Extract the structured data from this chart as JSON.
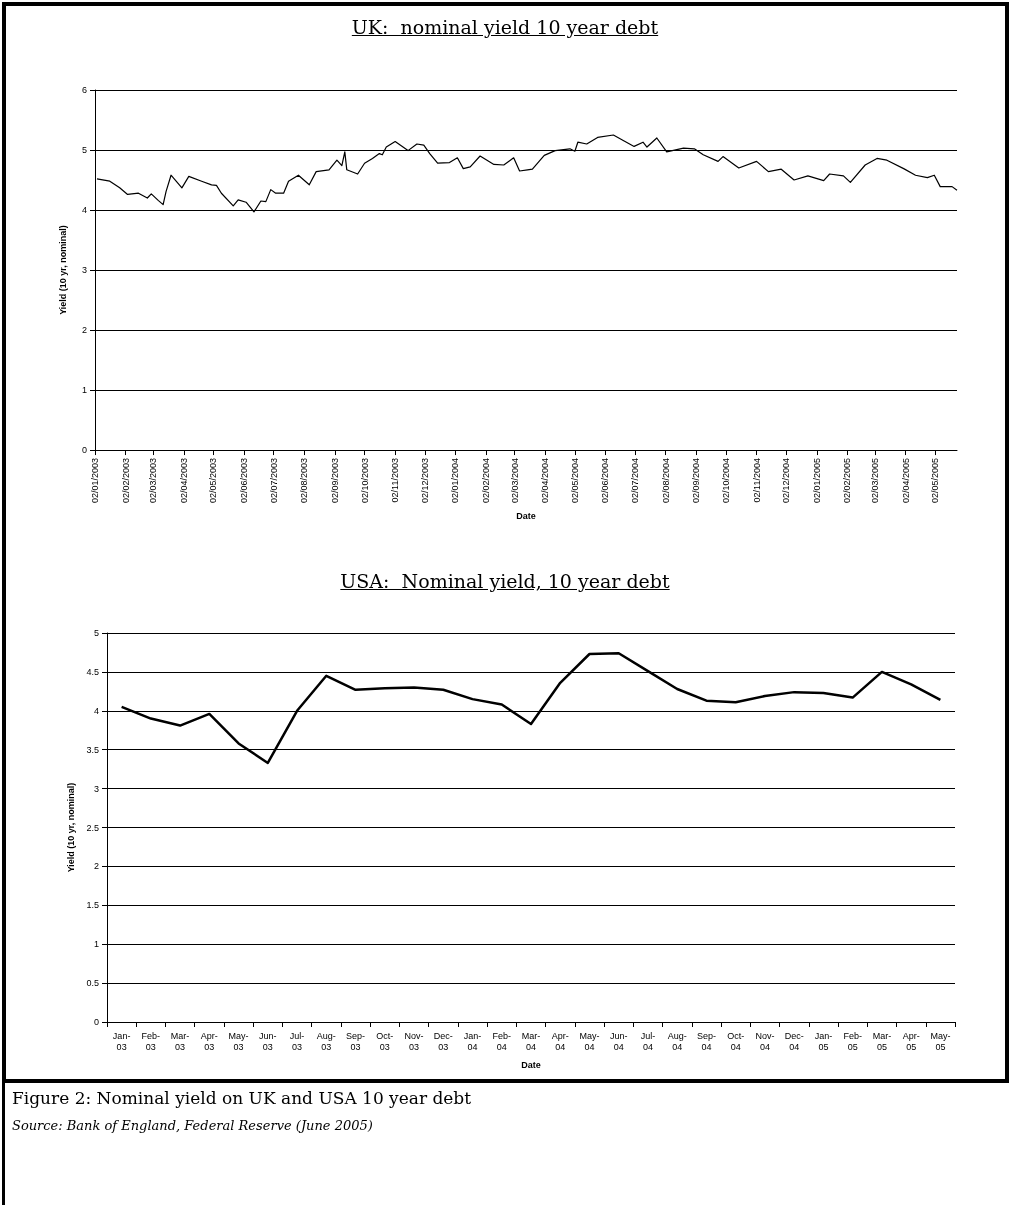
{
  "chart_data": [
    {
      "type": "line",
      "title": "UK:  nominal yield 10 year debt",
      "xlabel": "Date",
      "ylabel": "Yield (10 yr, nominal)",
      "marker": "none",
      "grid": "y",
      "color": "#000000",
      "x": [
        "2003-01-04",
        "2003-01-17",
        "2003-01-27",
        "2003-02-04",
        "2003-02-15",
        "2003-02-24",
        "2003-02-28",
        "2003-03-07",
        "2003-03-12",
        "2003-03-15",
        "2003-03-20",
        "2003-03-31",
        "2003-04-07",
        "2003-04-20",
        "2003-04-30",
        "2003-05-05",
        "2003-05-10",
        "2003-05-22",
        "2003-05-27",
        "2003-06-04",
        "2003-06-12",
        "2003-06-19",
        "2003-06-24",
        "2003-06-29",
        "2003-07-04",
        "2003-07-12",
        "2003-07-17",
        "2003-07-27",
        "2003-08-07",
        "2003-08-14",
        "2003-08-27",
        "2003-09-04",
        "2003-09-09",
        "2003-09-12",
        "2003-09-14",
        "2003-09-25",
        "2003-10-02",
        "2003-10-10",
        "2003-10-17",
        "2003-10-20",
        "2003-10-24",
        "2003-11-02",
        "2003-11-15",
        "2003-11-24",
        "2003-12-01",
        "2003-12-07",
        "2003-12-15",
        "2003-12-27",
        "2004-01-04",
        "2004-01-10",
        "2004-01-17",
        "2004-01-27",
        "2004-02-10",
        "2004-02-20",
        "2004-03-01",
        "2004-03-07",
        "2004-03-15",
        "2004-03-20",
        "2004-04-01",
        "2004-04-12",
        "2004-04-27",
        "2004-05-02",
        "2004-05-05",
        "2004-05-14",
        "2004-05-25",
        "2004-06-10",
        "2004-06-20",
        "2004-07-01",
        "2004-07-10",
        "2004-07-14",
        "2004-07-24",
        "2004-08-03",
        "2004-08-20",
        "2004-08-31",
        "2004-09-09",
        "2004-09-24",
        "2004-09-29",
        "2004-10-15",
        "2004-11-02",
        "2004-11-14",
        "2004-11-27",
        "2004-12-10",
        "2004-12-24",
        "2005-01-09",
        "2005-01-15",
        "2005-01-29",
        "2005-02-05",
        "2005-02-20",
        "2005-03-04",
        "2005-03-14",
        "2005-03-31",
        "2005-04-12",
        "2005-04-24",
        "2005-05-01",
        "2005-05-07",
        "2005-05-19",
        "2005-05-24"
      ],
      "values": [
        4.52,
        4.48,
        4.37,
        4.26,
        4.28,
        4.2,
        4.27,
        4.16,
        4.09,
        4.31,
        4.58,
        4.37,
        4.56,
        4.48,
        4.42,
        4.41,
        4.28,
        4.07,
        4.17,
        4.13,
        3.97,
        4.15,
        4.14,
        4.34,
        4.28,
        4.28,
        4.48,
        4.58,
        4.42,
        4.64,
        4.67,
        4.83,
        4.74,
        4.97,
        4.67,
        4.6,
        4.78,
        4.86,
        4.94,
        4.92,
        5.05,
        5.14,
        4.99,
        5.1,
        5.08,
        4.94,
        4.78,
        4.79,
        4.87,
        4.69,
        4.72,
        4.9,
        4.76,
        4.75,
        4.87,
        4.65,
        4.67,
        4.68,
        4.91,
        4.99,
        5.02,
        4.98,
        5.13,
        5.1,
        5.21,
        5.25,
        5.16,
        5.06,
        5.13,
        5.05,
        5.2,
        4.97,
        5.03,
        5.02,
        4.92,
        4.81,
        4.89,
        4.7,
        4.81,
        4.64,
        4.68,
        4.5,
        4.57,
        4.49,
        4.6,
        4.57,
        4.46,
        4.75,
        4.86,
        4.83,
        4.69,
        4.58,
        4.54,
        4.58,
        4.39,
        4.39,
        4.33
      ],
      "xlim": [
        "2003-01-02",
        "2005-05-24"
      ],
      "xticks": [
        {
          "value": "2003-01-02",
          "label": "02/01/2003"
        },
        {
          "value": "2003-02-02",
          "label": "02/02/2003"
        },
        {
          "value": "2003-03-02",
          "label": "02/03/2003"
        },
        {
          "value": "2003-04-02",
          "label": "02/04/2003"
        },
        {
          "value": "2003-05-02",
          "label": "02/05/2003"
        },
        {
          "value": "2003-06-02",
          "label": "02/06/2003"
        },
        {
          "value": "2003-07-02",
          "label": "02/07/2003"
        },
        {
          "value": "2003-08-02",
          "label": "02/08/2003"
        },
        {
          "value": "2003-09-02",
          "label": "02/09/2003"
        },
        {
          "value": "2003-10-02",
          "label": "02/10/2003"
        },
        {
          "value": "2003-11-02",
          "label": "02/11/2003"
        },
        {
          "value": "2003-12-02",
          "label": "02/12/2003"
        },
        {
          "value": "2004-01-02",
          "label": "02/01/2004"
        },
        {
          "value": "2004-02-02",
          "label": "02/02/2004"
        },
        {
          "value": "2004-03-02",
          "label": "02/03/2004"
        },
        {
          "value": "2004-04-02",
          "label": "02/04/2004"
        },
        {
          "value": "2004-05-02",
          "label": "02/05/2004"
        },
        {
          "value": "2004-06-02",
          "label": "02/06/2004"
        },
        {
          "value": "2004-07-02",
          "label": "02/07/2004"
        },
        {
          "value": "2004-08-02",
          "label": "02/08/2004"
        },
        {
          "value": "2004-09-02",
          "label": "02/09/2004"
        },
        {
          "value": "2004-10-02",
          "label": "02/10/2004"
        },
        {
          "value": "2004-11-02",
          "label": "02/11/2004"
        },
        {
          "value": "2004-12-02",
          "label": "02/12/2004"
        },
        {
          "value": "2005-01-02",
          "label": "02/01/2005"
        },
        {
          "value": "2005-02-02",
          "label": "02/02/2005"
        },
        {
          "value": "2005-03-02",
          "label": "02/03/2005"
        },
        {
          "value": "2005-04-02",
          "label": "02/04/2005"
        },
        {
          "value": "2005-05-02",
          "label": "02/05/2005"
        }
      ],
      "ylim": [
        0,
        6
      ],
      "yticks": [
        0,
        1,
        2,
        3,
        4,
        5,
        6
      ]
    },
    {
      "type": "line",
      "title": "USA:  Nominal yield, 10 year debt",
      "xlabel": "Date",
      "ylabel": "Yield (10 yr, nominal)",
      "marker": "none",
      "grid": "y",
      "color": "#000000",
      "categories": [
        "Jan-03",
        "Feb-03",
        "Mar-03",
        "Apr-03",
        "May-03",
        "Jun-03",
        "Jul-03",
        "Aug-03",
        "Sep-03",
        "Oct-03",
        "Nov-03",
        "Dec-03",
        "Jan-04",
        "Feb-04",
        "Mar-04",
        "Apr-04",
        "May-04",
        "Jun-04",
        "Jul-04",
        "Aug-04",
        "Sep-04",
        "Oct-04",
        "Nov-04",
        "Dec-04",
        "Jan-05",
        "Feb-05",
        "Mar-05",
        "Apr-05",
        "May-05"
      ],
      "values": [
        4.05,
        3.9,
        3.81,
        3.96,
        3.58,
        3.33,
        4.0,
        4.45,
        4.27,
        4.29,
        4.3,
        4.27,
        4.15,
        4.08,
        3.83,
        4.36,
        4.73,
        4.74,
        4.51,
        4.28,
        4.13,
        4.11,
        4.19,
        4.24,
        4.23,
        4.17,
        4.5,
        4.34,
        4.14
      ],
      "ylim": [
        0,
        5
      ],
      "yticks": [
        0,
        0.5,
        1,
        1.5,
        2,
        2.5,
        3,
        3.5,
        4,
        4.5,
        5
      ],
      "annotations": [
        "Figure 2: Nominal yield on UK and USA 10 year debt",
        "Source: Bank of England, Federal Reserve (June 2005)"
      ]
    }
  ]
}
